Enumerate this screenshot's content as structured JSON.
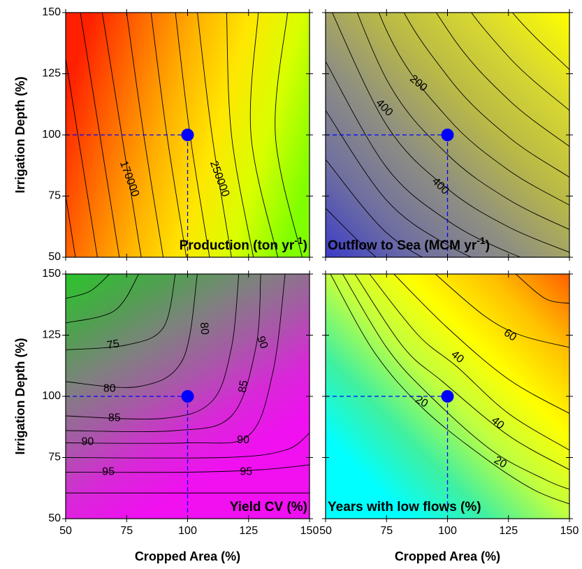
{
  "chart_data": [
    {
      "type": "contour",
      "title": [
        "Production (ton yr",
        "-1",
        ")"
      ],
      "title_corner": "bottom-right",
      "ylabel": "Irrigation Depth (%)",
      "xlim": [
        50,
        150
      ],
      "ylim": [
        50,
        150
      ],
      "xticks": [
        50,
        75,
        100,
        125,
        150
      ],
      "yticks": [
        50,
        75,
        100,
        125,
        150
      ],
      "show_xtick_labels": false,
      "show_ytick_labels": true,
      "colors": [
        "#ff2000",
        "#ff6a00",
        "#ffb000",
        "#ffe600",
        "#d8ff00",
        "#80ff00"
      ],
      "contours": [
        {
          "x": [
            54,
            46,
            38
          ],
          "y": [
            50,
            100,
            150
          ]
        },
        {
          "x": [
            63,
            55,
            47
          ],
          "y": [
            50,
            100,
            150
          ]
        },
        {
          "x": [
            72,
            64,
            56
          ],
          "y": [
            50,
            100,
            150
          ]
        },
        {
          "x": [
            81,
            73,
            65
          ],
          "y": [
            50,
            100,
            150
          ]
        },
        {
          "x": [
            90,
            82,
            75
          ],
          "y": [
            50,
            100,
            150
          ]
        },
        {
          "x": [
            99.5,
            91.5,
            85
          ],
          "y": [
            50,
            100,
            150
          ]
        },
        {
          "x": [
            109,
            101,
            95
          ],
          "y": [
            50,
            100,
            150
          ]
        },
        {
          "x": [
            118,
            110,
            104
          ],
          "y": [
            50,
            100,
            150
          ]
        },
        {
          "x": [
            127,
            118,
            116
          ],
          "y": [
            50,
            100,
            150
          ]
        },
        {
          "x": [
            137,
            126,
            129
          ],
          "y": [
            50,
            100,
            150
          ]
        },
        {
          "x": [
            147,
            136,
            141
          ],
          "y": [
            50,
            100,
            150
          ]
        }
      ],
      "labels": [
        {
          "value": 170000,
          "x": 76,
          "y": 82
        },
        {
          "value": 250000,
          "x": 113,
          "y": 82
        }
      ],
      "point": {
        "x": 100,
        "y": 100
      },
      "point_color": "#0000ff"
    },
    {
      "type": "contour",
      "title": [
        "Outflow to Sea (MCM yr",
        "-1",
        ")"
      ],
      "title_corner": "bottom-left",
      "xlim": [
        50,
        150
      ],
      "ylim": [
        50,
        150
      ],
      "xticks": [
        50,
        75,
        100,
        125,
        150
      ],
      "yticks": [
        50,
        75,
        100,
        125,
        150
      ],
      "show_xtick_labels": false,
      "show_ytick_labels": false,
      "colors": [
        "#3c3cc8",
        "#7070a0",
        "#909080",
        "#b8b848",
        "#d8d830",
        "#ffff00"
      ],
      "contours": [
        {
          "x": [
            50,
            75,
            100,
            125,
            150
          ],
          "y": [
            70,
            46.7,
            35,
            28,
            23.3
          ]
        },
        {
          "x": [
            50,
            75,
            100,
            125,
            150
          ],
          "y": [
            90,
            60,
            45,
            36,
            30
          ]
        },
        {
          "x": [
            50,
            75,
            100,
            125,
            150
          ],
          "y": [
            110,
            73.3,
            55,
            44,
            36.7
          ]
        },
        {
          "x": [
            50,
            75,
            100,
            125,
            150
          ],
          "y": [
            130,
            86.7,
            65,
            52,
            43.3
          ]
        },
        {
          "x": [
            50,
            75,
            100,
            125,
            150
          ],
          "y": [
            156,
            104,
            78,
            62.4,
            52
          ]
        },
        {
          "x": [
            50,
            75,
            100,
            125,
            150
          ],
          "y": [
            184,
            122.7,
            92,
            73.6,
            61.3
          ]
        },
        {
          "x": [
            50,
            75,
            100,
            125,
            150
          ],
          "y": [
            214,
            142.7,
            107,
            85.6,
            71.3
          ]
        },
        {
          "x": [
            50,
            75,
            100,
            125,
            150
          ],
          "y": [
            248,
            165.3,
            124,
            99.2,
            82.7
          ]
        },
        {
          "x": [
            50,
            75,
            100,
            125,
            150
          ],
          "y": [
            286,
            190.7,
            143,
            114.4,
            95.3
          ]
        },
        {
          "x": [
            50,
            75,
            100,
            125,
            150
          ],
          "y": [
            330,
            220,
            165,
            132,
            110
          ]
        },
        {
          "x": [
            50,
            75,
            100,
            125,
            150
          ],
          "y": [
            380,
            253.3,
            190,
            152,
            126.7
          ]
        }
      ],
      "labels": [
        {
          "value": 200,
          "x": 88,
          "y": 121
        },
        {
          "value": 400,
          "x": 74,
          "y": 111
        },
        {
          "value": 400,
          "x": 97,
          "y": 79
        }
      ],
      "point": {
        "x": 100,
        "y": 100
      },
      "point_color": "#0000ff"
    },
    {
      "type": "contour",
      "title": [
        "Yield CV (%)"
      ],
      "title_corner": "bottom-right",
      "xlabel": "Cropped Area (%)",
      "ylabel": "Irrigation Depth (%)",
      "xlim": [
        50,
        150
      ],
      "ylim": [
        50,
        150
      ],
      "xticks": [
        50,
        75,
        100,
        125,
        150
      ],
      "yticks": [
        50,
        75,
        100,
        125,
        150
      ],
      "show_xtick_labels": true,
      "show_ytick_labels": true,
      "colors": [
        "#30c030",
        "#50a050",
        "#808080",
        "#a858a8",
        "#d828d8",
        "#f010f0"
      ],
      "contours": [
        {
          "x": [
            50,
            60,
            68
          ],
          "y": [
            140,
            143,
            150
          ]
        },
        {
          "x": [
            50,
            70,
            80
          ],
          "y": [
            130,
            135,
            150
          ]
        },
        {
          "x": [
            50,
            75,
            90,
            95
          ],
          "y": [
            119,
            121,
            128,
            150
          ]
        },
        {
          "x": [
            50,
            80,
            98,
            104
          ],
          "y": [
            106,
            104,
            115,
            150
          ]
        },
        {
          "x": [
            50,
            90,
            110,
            118,
            121
          ],
          "y": [
            92,
            91,
            98,
            120,
            150
          ]
        },
        {
          "x": [
            50,
            95,
            118,
            128,
            130
          ],
          "y": [
            86,
            86,
            92,
            120,
            150
          ]
        },
        {
          "x": [
            50,
            100,
            125,
            135,
            140
          ],
          "y": [
            81,
            81,
            84,
            110,
            150
          ]
        },
        {
          "x": [
            50,
            115,
            140,
            150
          ],
          "y": [
            75,
            75,
            78,
            85
          ]
        },
        {
          "x": [
            50,
            100,
            130,
            150
          ],
          "y": [
            69,
            69,
            70,
            72
          ]
        },
        {
          "x": [
            50,
            150
          ],
          "y": [
            60.5,
            60.5
          ]
        }
      ],
      "labels": [
        {
          "value": 75,
          "x": 69.5,
          "y": 121
        },
        {
          "value": 80,
          "x": 68,
          "y": 103
        },
        {
          "value": 85,
          "x": 70,
          "y": 91
        },
        {
          "value": 90,
          "x": 59,
          "y": 81.4
        },
        {
          "value": 95,
          "x": 67.5,
          "y": 69
        },
        {
          "value": 80,
          "x": 106.7,
          "y": 127.7
        },
        {
          "value": 85,
          "x": 123,
          "y": 104
        },
        {
          "value": 90,
          "x": 130.5,
          "y": 122
        },
        {
          "value": 90,
          "x": 122.8,
          "y": 82
        },
        {
          "value": 95,
          "x": 124,
          "y": 69
        }
      ],
      "point": {
        "x": 100,
        "y": 100
      },
      "point_color": "#0000ff"
    },
    {
      "type": "contour",
      "title": [
        "Years with low flows (%)"
      ],
      "title_corner": "bottom-left",
      "xlabel": "Cropped Area (%)",
      "xlim": [
        50,
        150
      ],
      "ylim": [
        50,
        150
      ],
      "xticks": [
        50,
        75,
        100,
        125,
        150
      ],
      "yticks": [
        50,
        75,
        100,
        125,
        150
      ],
      "show_xtick_labels": true,
      "show_ytick_labels": false,
      "colors": [
        "#00ffff",
        "#00ffff",
        "#40f0a0",
        "#c0ff40",
        "#ffff00",
        "#ffc000",
        "#ff6000"
      ],
      "contours": [
        {
          "x": [
            52,
            70,
            90,
            115,
            135,
            150
          ],
          "y": [
            150,
            118,
            95,
            75,
            62,
            56
          ]
        },
        {
          "x": [
            57,
            75,
            92,
            118,
            140,
            150
          ],
          "y": [
            150,
            120,
            101,
            78,
            66,
            62
          ]
        },
        {
          "x": [
            62,
            82,
            98,
            125,
            150
          ],
          "y": [
            150,
            120,
            106,
            84,
            70
          ]
        },
        {
          "x": [
            68,
            88,
            104,
            125,
            150
          ],
          "y": [
            150,
            125,
            112,
            93,
            78
          ]
        },
        {
          "x": [
            78,
            100,
            125,
            150
          ],
          "y": [
            150,
            128,
            107,
            93
          ]
        },
        {
          "x": [
            95,
            115,
            130,
            150
          ],
          "y": [
            150,
            133,
            125,
            120
          ]
        },
        {
          "x": [
            128,
            140,
            150
          ],
          "y": [
            150,
            140,
            138
          ]
        }
      ],
      "labels": [
        {
          "value": 20,
          "x": 89.3,
          "y": 97.7
        },
        {
          "value": 40,
          "x": 104,
          "y": 116
        },
        {
          "value": 60,
          "x": 125.6,
          "y": 124.9
        },
        {
          "value": 40,
          "x": 120.5,
          "y": 89
        },
        {
          "value": 20,
          "x": 121.6,
          "y": 72.9
        }
      ],
      "point": {
        "x": 100,
        "y": 100
      },
      "point_color": "#0000ff"
    }
  ]
}
